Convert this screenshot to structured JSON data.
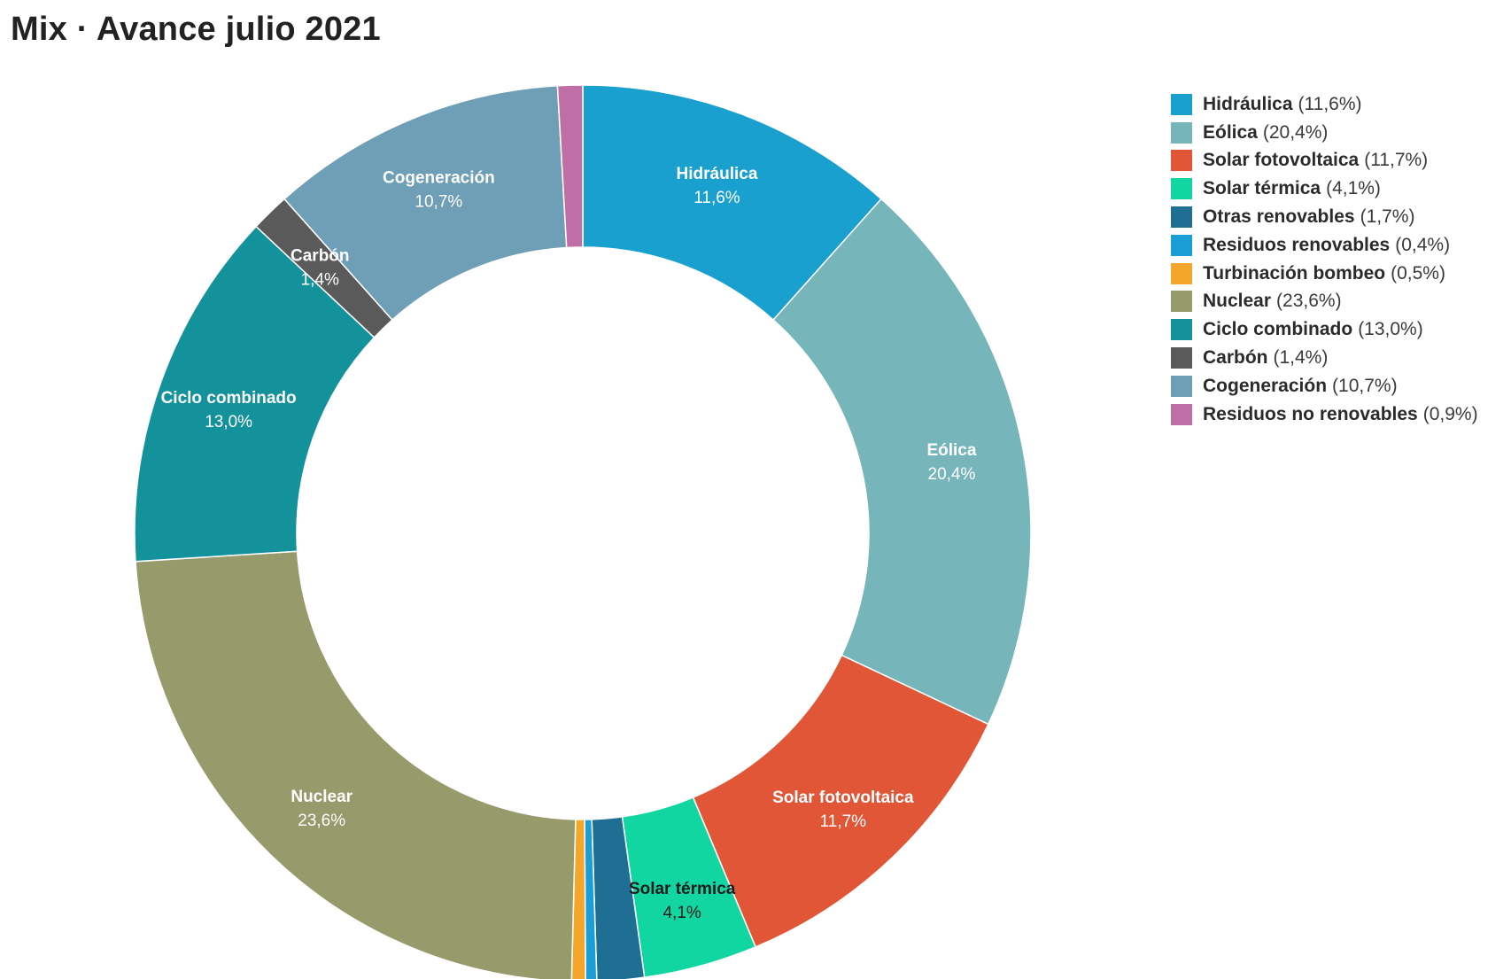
{
  "chart_data": {
    "type": "pie",
    "title": "Mix · Avance julio 2021",
    "legend_position": "right",
    "slices": [
      {
        "name": "Hidráulica",
        "value": 11.6,
        "pct_label": "11,6%",
        "legend_text": "(11,6%)",
        "color": "#1aa0cf",
        "show_label": true,
        "label_color": "#ffffff"
      },
      {
        "name": "Eólica",
        "value": 20.4,
        "pct_label": "20,4%",
        "legend_text": "(20,4%)",
        "color": "#76b5b9",
        "show_label": true,
        "label_color": "#ffffff"
      },
      {
        "name": "Solar fotovoltaica",
        "value": 11.7,
        "pct_label": "11,7%",
        "legend_text": "(11,7%)",
        "color": "#e05636",
        "show_label": true,
        "label_color": "#ffffff"
      },
      {
        "name": "Solar térmica",
        "value": 4.1,
        "pct_label": "4,1%",
        "legend_text": "(4,1%)",
        "color": "#12d6a1",
        "show_label": true,
        "label_color": "#1b1b1b"
      },
      {
        "name": "Otras renovables",
        "value": 1.7,
        "pct_label": "1,7%",
        "legend_text": "(1,7%)",
        "color": "#1f6f95",
        "show_label": false,
        "label_color": "#ffffff"
      },
      {
        "name": "Residuos renovables",
        "value": 0.4,
        "pct_label": "0,4%",
        "legend_text": "(0,4%)",
        "color": "#1b9ed6",
        "show_label": false,
        "label_color": "#ffffff"
      },
      {
        "name": "Turbinación bombeo",
        "value": 0.5,
        "pct_label": "0,5%",
        "legend_text": "(0,5%)",
        "color": "#f4a62a",
        "show_label": false,
        "label_color": "#ffffff"
      },
      {
        "name": "Nuclear",
        "value": 23.6,
        "pct_label": "23,6%",
        "legend_text": "(23,6%)",
        "color": "#979a6b",
        "show_label": true,
        "label_color": "#ffffff"
      },
      {
        "name": "Ciclo combinado",
        "value": 13.0,
        "pct_label": "13,0%",
        "legend_text": "(13,0%)",
        "color": "#13929c",
        "show_label": true,
        "label_color": "#ffffff"
      },
      {
        "name": "Carbón",
        "value": 1.4,
        "pct_label": "1,4%",
        "legend_text": "(1,4%)",
        "color": "#5a5a5a",
        "show_label": true,
        "label_color": "#ffffff"
      },
      {
        "name": "Cogeneración",
        "value": 10.7,
        "pct_label": "10,7%",
        "legend_text": "(10,7%)",
        "color": "#6e9fb7",
        "show_label": true,
        "label_color": "#ffffff"
      },
      {
        "name": "Residuos no renovables",
        "value": 0.9,
        "pct_label": "0,9%",
        "legend_text": "(0,9%)",
        "color": "#c06fa6",
        "show_label": false,
        "label_color": "#ffffff"
      }
    ]
  }
}
